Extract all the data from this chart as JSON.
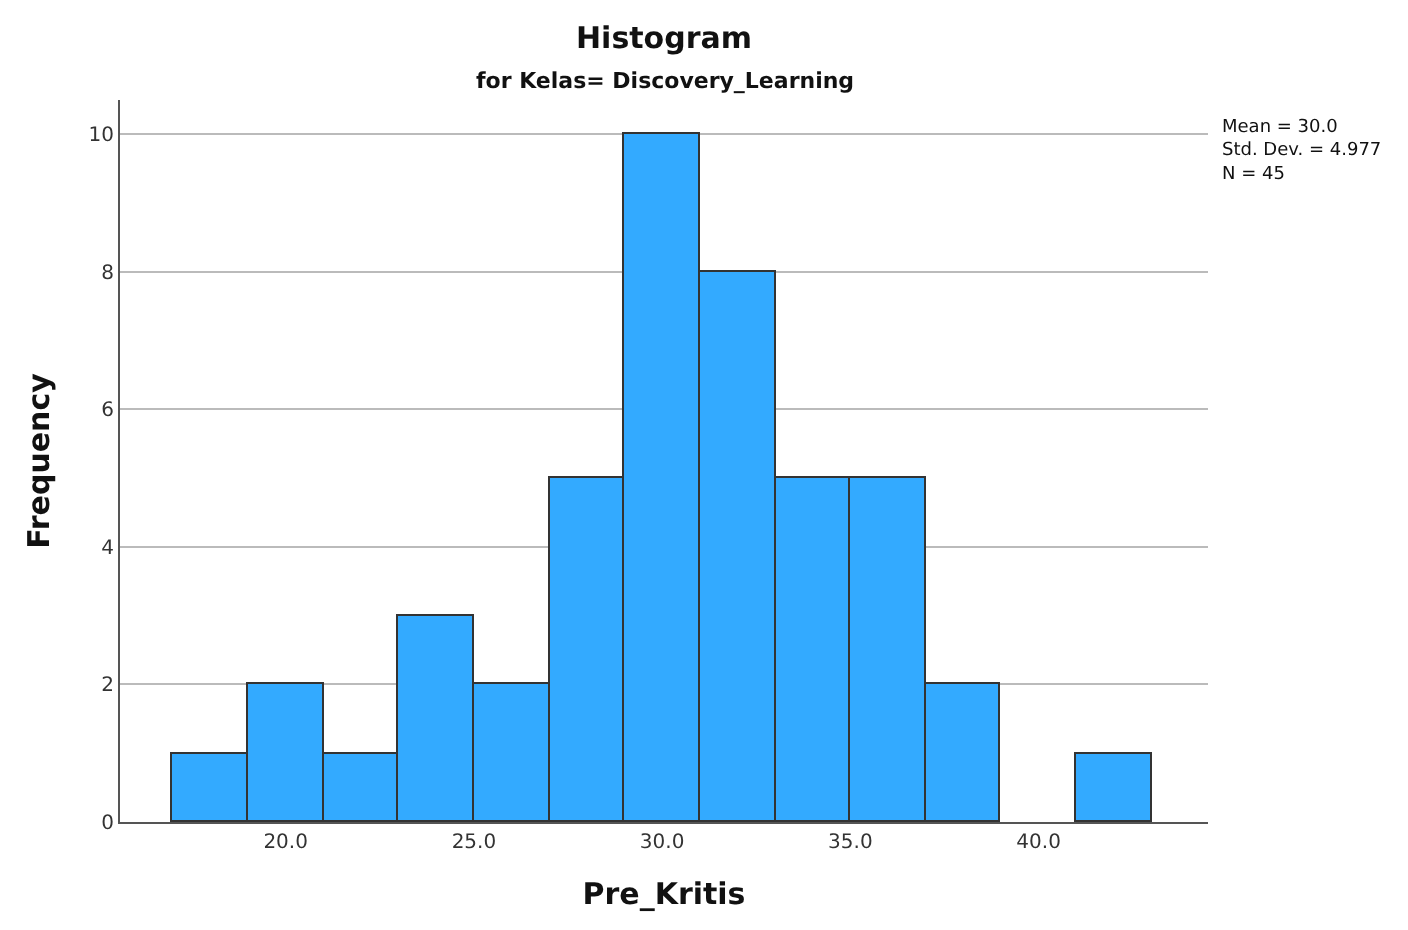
{
  "chart_data": {
    "type": "histogram",
    "title": "Histogram",
    "subtitle": "for Kelas= Discovery_Learning",
    "xlabel": "Pre_Kritis",
    "ylabel": "Frequency",
    "bins": [
      17,
      19,
      21,
      23,
      25,
      27,
      29,
      31,
      33,
      35,
      37,
      39,
      41,
      43
    ],
    "values": [
      1,
      2,
      1,
      3,
      2,
      5,
      10,
      8,
      5,
      5,
      2,
      0,
      1
    ],
    "color": "#33aaff",
    "xlim": [
      15.6,
      44.5
    ],
    "xticks": [
      {
        "value": 20,
        "label": "20.0"
      },
      {
        "value": 25,
        "label": "25.0"
      },
      {
        "value": 30,
        "label": "30.0"
      },
      {
        "value": 35,
        "label": "35.0"
      },
      {
        "value": 40,
        "label": "40.0"
      }
    ],
    "ylim": [
      0,
      10.5
    ],
    "yticks": [
      0,
      2,
      4,
      6,
      8,
      10
    ],
    "grid": "y",
    "annotations": [
      "Mean = 30.0\nStd. Dev. = 4.977\nN = 45"
    ]
  }
}
